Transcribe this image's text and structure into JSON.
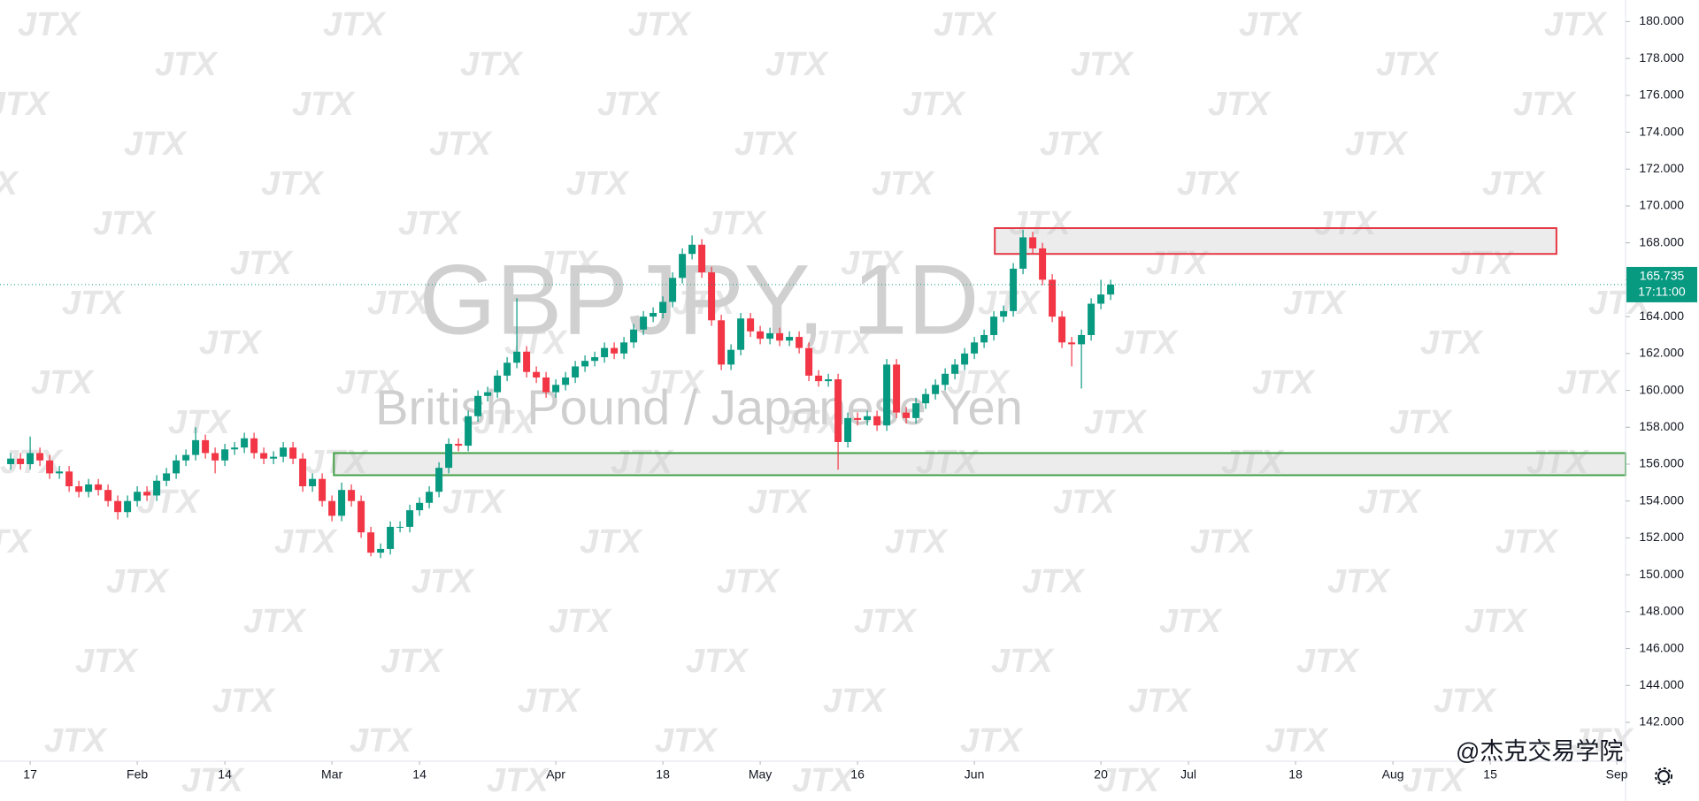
{
  "chart_data": {
    "type": "candlestick",
    "title": "GBPJPY, 1D",
    "subtitle": "British Pound / Japanese Yen",
    "watermark": "JTX",
    "brand": "@杰克交易学院",
    "xlim": [
      -1.1,
      165.9
    ],
    "ylim": [
      139.89,
      181.17
    ],
    "xticks": [
      {
        "value": 2,
        "label": "17"
      },
      {
        "value": 13,
        "label": "Feb"
      },
      {
        "value": 22,
        "label": "14"
      },
      {
        "value": 33,
        "label": "Mar"
      },
      {
        "value": 42,
        "label": "14"
      },
      {
        "value": 56,
        "label": "Apr"
      },
      {
        "value": 67,
        "label": "18"
      },
      {
        "value": 77,
        "label": "May"
      },
      {
        "value": 87,
        "label": "16"
      },
      {
        "value": 99,
        "label": "Jun"
      },
      {
        "value": 112,
        "label": "20"
      },
      {
        "value": 121,
        "label": "Jul"
      },
      {
        "value": 132,
        "label": "18"
      },
      {
        "value": 142,
        "label": "Aug"
      },
      {
        "value": 152,
        "label": "15"
      },
      {
        "value": 165,
        "label": "Sep"
      }
    ],
    "yticks": [
      {
        "value": 142,
        "label": "142.000"
      },
      {
        "value": 144,
        "label": "144.000"
      },
      {
        "value": 146,
        "label": "146.000"
      },
      {
        "value": 148,
        "label": "148.000"
      },
      {
        "value": 150,
        "label": "150.000"
      },
      {
        "value": 152,
        "label": "152.000"
      },
      {
        "value": 154,
        "label": "154.000"
      },
      {
        "value": 156,
        "label": "156.000"
      },
      {
        "value": 158,
        "label": "158.000"
      },
      {
        "value": 160,
        "label": "160.000"
      },
      {
        "value": 162,
        "label": "162.000"
      },
      {
        "value": 164,
        "label": "164.000"
      },
      {
        "value": 166,
        "label": "166.000"
      },
      {
        "value": 168,
        "label": "168.000"
      },
      {
        "value": 170,
        "label": "170.000"
      },
      {
        "value": 172,
        "label": "172.000"
      },
      {
        "value": 174,
        "label": "174.000"
      },
      {
        "value": 176,
        "label": "176.000"
      },
      {
        "value": 178,
        "label": "178.000"
      },
      {
        "value": 180,
        "label": "180.000"
      }
    ],
    "series": [
      {
        "up_color": "#089981",
        "down_color": "#f23645",
        "open": [
          156.0,
          156.3,
          156.0,
          156.6,
          156.2,
          155.5,
          155.6,
          154.8,
          154.5,
          154.9,
          154.6,
          154.0,
          153.4,
          154.0,
          154.5,
          154.3,
          155.1,
          155.5,
          156.2,
          156.5,
          157.3,
          156.6,
          156.2,
          156.8,
          156.9,
          157.4,
          156.6,
          156.3,
          156.4,
          156.9,
          156.3,
          154.8,
          155.2,
          154.0,
          153.2,
          154.6,
          154.0,
          152.3,
          151.2,
          151.4,
          152.6,
          152.6,
          153.5,
          153.9,
          154.5,
          155.8,
          157.1,
          157.0,
          158.6,
          159.7,
          159.9,
          160.8,
          161.5,
          162.1,
          161.0,
          160.7,
          159.9,
          160.3,
          160.7,
          161.3,
          161.6,
          161.8,
          162.3,
          162.0,
          162.6,
          163.3,
          164.0,
          164.2,
          164.8,
          166.1,
          167.4,
          167.9,
          166.4,
          163.8,
          161.4,
          162.2,
          163.9,
          163.2,
          162.8,
          163.1,
          162.7,
          162.9,
          162.3,
          160.8,
          160.5,
          160.6,
          157.2,
          158.5,
          158.4,
          158.6,
          158.1,
          161.4,
          158.8,
          158.5,
          159.3,
          159.8,
          160.3,
          160.9,
          161.4,
          162.0,
          162.6,
          163.0,
          164.0,
          164.3,
          166.6,
          168.3,
          167.7,
          166.0,
          164.0,
          162.6,
          162.5,
          163.0,
          164.7,
          165.2
        ],
        "high": [
          156.6,
          156.6,
          157.5,
          156.9,
          156.5,
          155.9,
          155.9,
          155.1,
          155.2,
          155.2,
          154.9,
          154.3,
          154.3,
          154.8,
          154.8,
          155.4,
          155.8,
          156.5,
          156.8,
          158.0,
          157.6,
          156.9,
          157.1,
          157.2,
          157.7,
          157.7,
          156.9,
          156.7,
          157.2,
          157.2,
          156.6,
          155.5,
          155.5,
          154.3,
          155.0,
          154.9,
          154.3,
          152.6,
          151.7,
          152.9,
          152.9,
          153.8,
          154.2,
          154.8,
          156.1,
          157.4,
          157.4,
          158.9,
          160.0,
          160.2,
          161.1,
          161.8,
          165.0,
          162.4,
          161.3,
          161.0,
          160.6,
          161.0,
          161.6,
          161.9,
          162.1,
          162.6,
          162.6,
          162.9,
          163.6,
          164.3,
          164.5,
          165.1,
          166.4,
          167.7,
          168.4,
          168.2,
          166.7,
          164.1,
          162.5,
          164.2,
          164.2,
          163.5,
          163.4,
          163.4,
          163.2,
          163.2,
          162.6,
          161.1,
          160.9,
          160.9,
          158.8,
          158.8,
          158.9,
          158.9,
          161.7,
          161.7,
          159.1,
          159.6,
          160.1,
          160.6,
          161.2,
          161.7,
          162.3,
          162.9,
          163.3,
          164.3,
          164.6,
          166.9,
          168.7,
          168.6,
          168.0,
          166.3,
          164.3,
          162.9,
          163.3,
          165.0,
          166.0,
          166.0
        ],
        "low": [
          155.7,
          155.7,
          155.7,
          155.9,
          155.2,
          155.2,
          154.5,
          154.2,
          154.2,
          154.3,
          153.7,
          153.0,
          153.1,
          153.7,
          154.0,
          154.0,
          154.8,
          155.2,
          155.9,
          156.2,
          156.3,
          155.5,
          155.9,
          156.5,
          156.6,
          156.3,
          156.0,
          156.0,
          156.1,
          156.0,
          154.5,
          154.5,
          153.7,
          152.9,
          152.9,
          153.7,
          152.0,
          151.0,
          150.9,
          151.1,
          152.3,
          152.3,
          153.2,
          153.6,
          154.2,
          155.5,
          156.7,
          156.7,
          158.3,
          159.4,
          159.6,
          160.5,
          161.2,
          160.7,
          160.4,
          159.6,
          159.6,
          160.0,
          160.4,
          161.0,
          161.3,
          161.5,
          161.7,
          161.7,
          162.3,
          163.0,
          163.7,
          163.9,
          164.5,
          165.8,
          167.1,
          166.1,
          163.5,
          161.1,
          161.1,
          161.9,
          162.9,
          162.5,
          162.5,
          162.4,
          162.4,
          162.0,
          160.5,
          160.2,
          160.2,
          155.7,
          156.9,
          158.1,
          158.1,
          157.8,
          157.8,
          158.5,
          158.2,
          158.2,
          159.0,
          159.5,
          160.0,
          160.6,
          161.1,
          161.7,
          162.3,
          162.7,
          163.7,
          164.0,
          166.3,
          167.4,
          165.7,
          163.7,
          162.3,
          161.3,
          160.1,
          162.7,
          164.4,
          164.9
        ],
        "close": [
          156.3,
          156.0,
          156.6,
          156.2,
          155.5,
          155.6,
          154.8,
          154.5,
          154.9,
          154.6,
          154.0,
          153.4,
          154.0,
          154.5,
          154.3,
          155.1,
          155.5,
          156.2,
          156.5,
          157.3,
          156.6,
          156.2,
          156.8,
          156.9,
          157.4,
          156.6,
          156.3,
          156.4,
          156.9,
          156.3,
          154.8,
          155.2,
          154.0,
          153.2,
          154.6,
          154.0,
          152.3,
          151.2,
          151.4,
          152.6,
          152.6,
          153.5,
          153.9,
          154.5,
          155.8,
          157.1,
          157.0,
          158.6,
          159.7,
          159.9,
          160.8,
          161.5,
          162.1,
          161.0,
          160.7,
          159.9,
          160.3,
          160.7,
          161.3,
          161.6,
          161.8,
          162.3,
          162.0,
          162.6,
          163.3,
          164.0,
          164.2,
          164.8,
          166.1,
          167.4,
          167.9,
          166.4,
          163.8,
          161.4,
          162.2,
          163.9,
          163.2,
          162.8,
          163.1,
          162.7,
          162.9,
          162.3,
          160.8,
          160.5,
          160.6,
          157.2,
          158.5,
          158.4,
          158.6,
          158.1,
          161.4,
          158.8,
          158.5,
          159.3,
          159.8,
          160.3,
          160.9,
          161.4,
          162.0,
          162.6,
          163.0,
          164.0,
          164.3,
          166.6,
          168.3,
          167.7,
          166.0,
          164.0,
          162.6,
          162.5,
          163.0,
          164.7,
          165.2,
          165.735
        ]
      }
    ],
    "last_price": 165.735,
    "last_time": "17:11:00",
    "last_color": "#089981",
    "zones": [
      {
        "y": [
          167.4,
          168.8
        ],
        "x": [
          101.1,
          158.8
        ],
        "color": "#e53945"
      },
      {
        "y": [
          155.4,
          156.6
        ],
        "x": [
          33.2,
          165.9
        ],
        "color": "#43a047"
      }
    ]
  }
}
